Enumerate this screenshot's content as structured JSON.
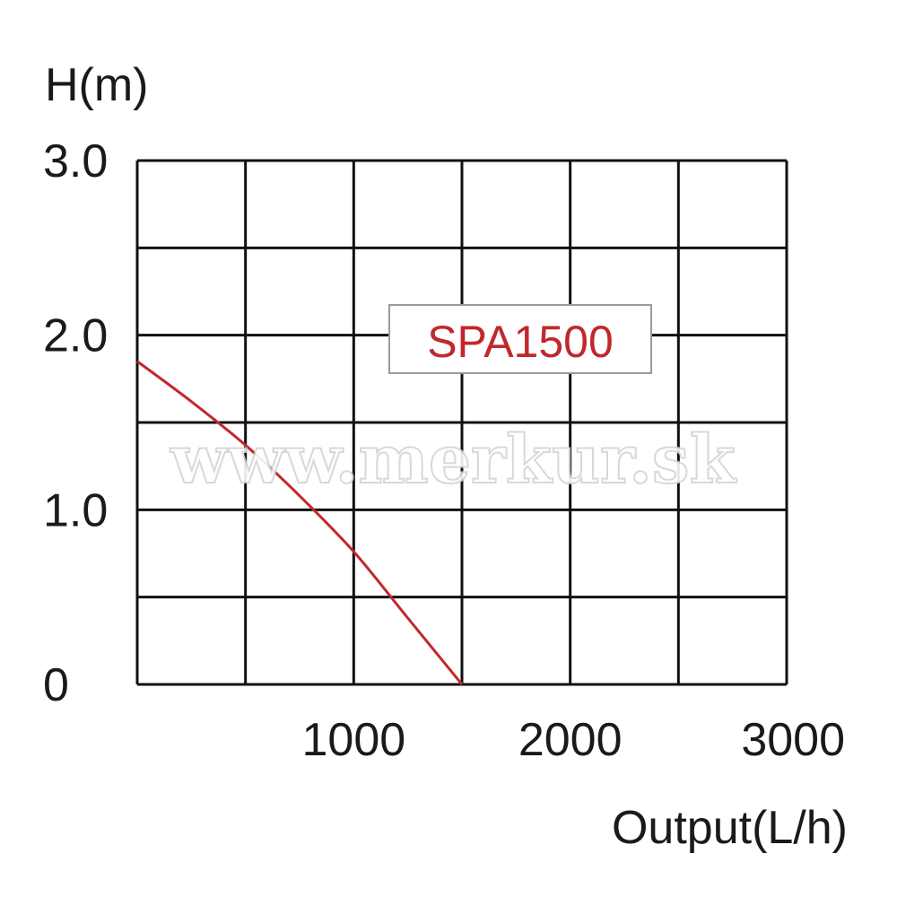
{
  "chart_data": {
    "type": "line",
    "title": "",
    "xlabel": "Output(L/h)",
    "ylabel": "H(m)",
    "xlim": [
      0,
      3000
    ],
    "ylim": [
      0,
      3.0
    ],
    "x_ticks": [
      1000,
      2000,
      3000
    ],
    "x_tick_labels": [
      "1000",
      "2000",
      "3000"
    ],
    "y_ticks": [
      0,
      1.0,
      2.0,
      3.0
    ],
    "y_tick_labels": [
      "0",
      "1.0",
      "2.0",
      "3.0"
    ],
    "x_grid_step": 500,
    "y_grid_step": 0.5,
    "grid": true,
    "annotation": "SPA1500",
    "watermark": "www.merkur.sk",
    "series": [
      {
        "name": "SPA1500",
        "color": "#c0282d",
        "x": [
          0,
          250,
          500,
          750,
          1000,
          1250,
          1500
        ],
        "y": [
          1.85,
          1.62,
          1.37,
          1.08,
          0.76,
          0.38,
          0
        ]
      }
    ]
  }
}
